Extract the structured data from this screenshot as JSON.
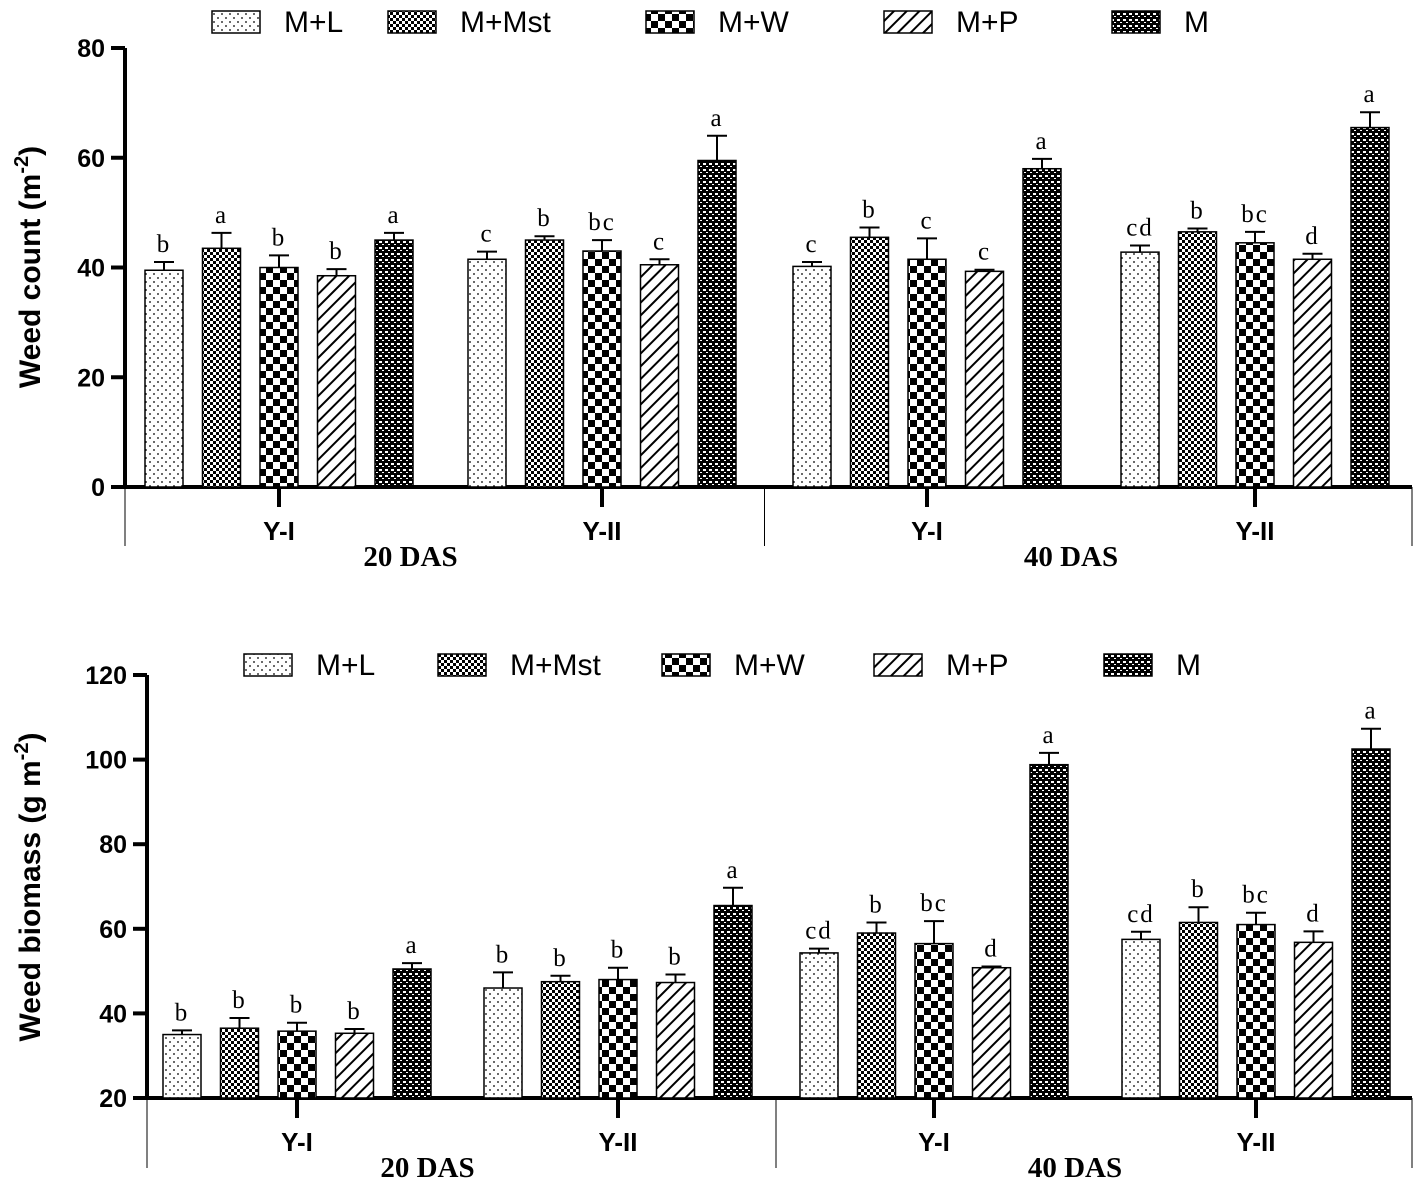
{
  "chart_data": [
    {
      "type": "bar",
      "id": "weed-count",
      "ylabel": "Weed count (m",
      "ylabel_sup": "-2",
      "ylabel_end": ")",
      "ylim": [
        0,
        80
      ],
      "yticks": [
        0,
        20,
        40,
        60,
        80
      ],
      "legend": [
        "M+L",
        "M+Mst",
        "M+W",
        "M+P",
        "M"
      ],
      "groups": [
        {
          "year": "Y-I",
          "period": "20 DAS",
          "values": [
            39.5,
            43.5,
            40,
            38.5,
            45
          ],
          "errors": [
            1.5,
            2.8,
            2.2,
            1.2,
            1.3
          ],
          "letters": [
            "b",
            "a",
            "b",
            "b",
            "a"
          ]
        },
        {
          "year": "Y-II",
          "period": "20 DAS",
          "values": [
            41.5,
            45,
            43,
            40.5,
            59.5
          ],
          "errors": [
            1.4,
            0.7,
            2.0,
            1.0,
            4.5
          ],
          "letters": [
            "c",
            "b",
            "bc",
            "c",
            "a"
          ]
        },
        {
          "year": "Y-I",
          "period": "40 DAS",
          "values": [
            40.2,
            45.5,
            41.5,
            39.3,
            58
          ],
          "errors": [
            0.8,
            1.8,
            3.8,
            0.3,
            1.8
          ],
          "letters": [
            "c",
            "b",
            "c",
            "c",
            "a"
          ]
        },
        {
          "year": "Y-II",
          "period": "40 DAS",
          "values": [
            42.8,
            46.5,
            44.5,
            41.5,
            65.5
          ],
          "errors": [
            1.2,
            0.6,
            2.0,
            1.0,
            2.8
          ],
          "letters": [
            "cd",
            "b",
            "bc",
            "d",
            "a"
          ]
        }
      ],
      "periods": [
        "20 DAS",
        "40 DAS"
      ]
    },
    {
      "type": "bar",
      "id": "weed-biomass",
      "ylabel": "Weed biomass (g m",
      "ylabel_sup": "-2",
      "ylabel_end": ")",
      "ylim": [
        20,
        120
      ],
      "yticks": [
        20,
        40,
        60,
        80,
        100,
        120
      ],
      "legend": [
        "M+L",
        "M+Mst",
        "M+W",
        "M+P",
        "M"
      ],
      "groups": [
        {
          "year": "Y-I",
          "period": "20 DAS",
          "values": [
            35,
            36.5,
            35.8,
            35.3,
            50.5
          ],
          "errors": [
            1.0,
            2.4,
            2.0,
            1.0,
            1.4
          ],
          "letters": [
            "b",
            "b",
            "b",
            "b",
            "a"
          ]
        },
        {
          "year": "Y-II",
          "period": "20 DAS",
          "values": [
            46,
            47.5,
            48,
            47.3,
            65.5
          ],
          "errors": [
            3.7,
            1.4,
            2.8,
            1.9,
            4.2
          ],
          "letters": [
            "b",
            "b",
            "b",
            "b",
            "a"
          ]
        },
        {
          "year": "Y-I",
          "period": "40 DAS",
          "values": [
            54.3,
            59,
            56.5,
            50.8,
            98.8
          ],
          "errors": [
            1.0,
            2.5,
            5.3,
            0.3,
            2.8
          ],
          "letters": [
            "cd",
            "b",
            "bc",
            "d",
            "a"
          ]
        },
        {
          "year": "Y-II",
          "period": "40 DAS",
          "values": [
            57.5,
            61.5,
            61,
            56.8,
            102.5
          ],
          "errors": [
            1.8,
            3.6,
            2.8,
            2.6,
            4.8
          ],
          "letters": [
            "cd",
            "b",
            "bc",
            "d",
            "a"
          ]
        }
      ],
      "periods": [
        "20 DAS",
        "40 DAS"
      ]
    }
  ]
}
